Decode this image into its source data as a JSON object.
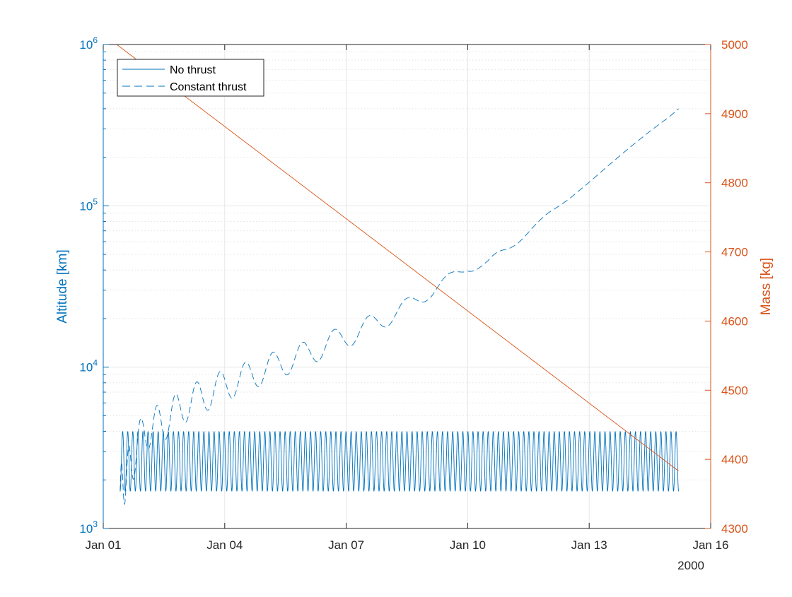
{
  "chart_data": {
    "type": "line",
    "x_axis": {
      "type": "date",
      "range": [
        "2000-01-01",
        "2000-01-16"
      ],
      "ticks": [
        "2000-01-01",
        "2000-01-04",
        "2000-01-07",
        "2000-01-10",
        "2000-01-13",
        "2000-01-16"
      ],
      "tick_labels": [
        "Jan 01",
        "Jan 04",
        "Jan 07",
        "Jan 10",
        "Jan 13",
        "Jan 16"
      ],
      "secondary_label": "2000",
      "grid": true
    },
    "y_left": {
      "label": "Altitude [km]",
      "scale": "log",
      "range": [
        1000,
        1000000
      ],
      "tick_labels": [
        {
          "base": "10",
          "exp": "3"
        },
        {
          "base": "10",
          "exp": "4"
        },
        {
          "base": "10",
          "exp": "5"
        },
        {
          "base": "10",
          "exp": "6"
        }
      ],
      "color": "#0072BD",
      "grid": true,
      "minor_grid": true
    },
    "y_right": {
      "label": "Mass [kg]",
      "scale": "linear",
      "range": [
        4300,
        5000
      ],
      "ticks": [
        4300,
        4400,
        4500,
        4600,
        4700,
        4800,
        4900,
        5000
      ],
      "tick_labels": [
        "4300",
        "4400",
        "4500",
        "4600",
        "4700",
        "4800",
        "4900",
        "5000"
      ],
      "color": "#D95319"
    },
    "legend": {
      "location": "top-left",
      "entries": [
        "No thrust",
        "Constant thrust"
      ]
    },
    "series": [
      {
        "name": "No thrust",
        "axis": "left",
        "style": "solid",
        "color": "#0072BD",
        "x_start": "2000-01-01T10:00",
        "x_end": "2000-01-15T05:00",
        "oscillation": {
          "min": 1700,
          "max": 4000,
          "cycles": 110
        }
      },
      {
        "name": "Constant thrust",
        "axis": "left",
        "style": "dashed",
        "color": "#0072BD",
        "points": [
          [
            "2000-01-01T10:00",
            1700
          ],
          [
            "2000-01-02T00:00",
            4000
          ],
          [
            "2000-01-02T12:00",
            4600
          ],
          [
            "2000-01-03T00:00",
            5800
          ],
          [
            "2000-01-03T12:00",
            6700
          ],
          [
            "2000-01-04T00:00",
            7700
          ],
          [
            "2000-01-04T12:00",
            8600
          ],
          [
            "2000-01-05T00:00",
            9700
          ],
          [
            "2000-01-05T12:00",
            10800
          ],
          [
            "2000-01-06T00:00",
            12000
          ],
          [
            "2000-01-06T12:00",
            13700
          ],
          [
            "2000-01-07T00:00",
            15500
          ],
          [
            "2000-01-07T12:00",
            17500
          ],
          [
            "2000-01-08T00:00",
            20500
          ],
          [
            "2000-01-08T12:00",
            23500
          ],
          [
            "2000-01-09T00:00",
            29000
          ],
          [
            "2000-01-09T12:00",
            34000
          ],
          [
            "2000-01-10T00:00",
            42000
          ],
          [
            "2000-01-10T12:00",
            44000
          ],
          [
            "2000-01-11T00:00",
            54000
          ],
          [
            "2000-01-11T12:00",
            70000
          ],
          [
            "2000-01-12T00:00",
            90000
          ],
          [
            "2000-01-12T12:00",
            110000
          ],
          [
            "2000-01-13T00:00",
            140000
          ],
          [
            "2000-01-13T12:00",
            180000
          ],
          [
            "2000-01-14T00:00",
            230000
          ],
          [
            "2000-01-14T12:00",
            290000
          ],
          [
            "2000-01-15T00:00",
            360000
          ],
          [
            "2000-01-15T05:00",
            400000
          ]
        ]
      },
      {
        "name": "",
        "axis": "right",
        "style": "solid",
        "color": "#D95319",
        "points": [
          [
            "2000-01-01T08:00",
            5000
          ],
          [
            "2000-01-15T05:00",
            4383
          ]
        ]
      }
    ]
  }
}
